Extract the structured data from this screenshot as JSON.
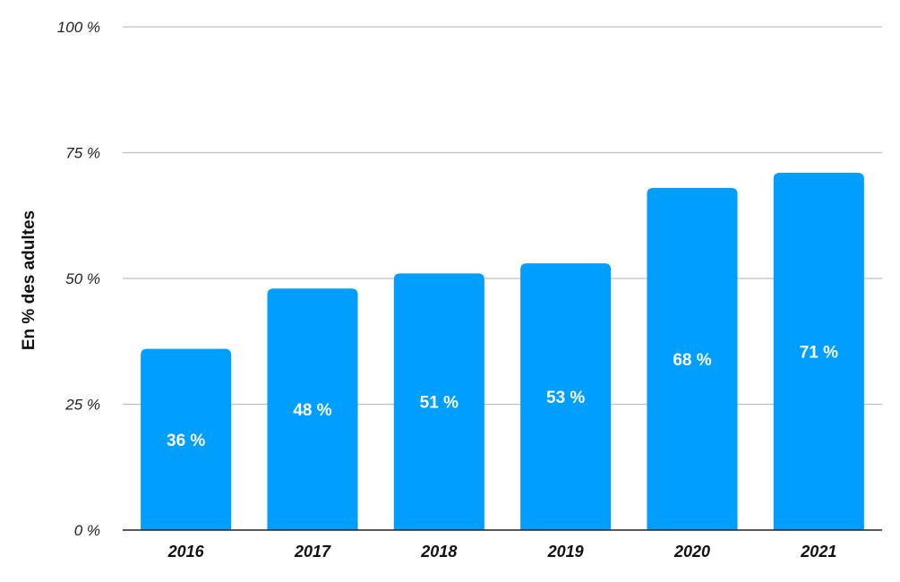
{
  "chart_data": {
    "type": "bar",
    "categories": [
      "2016",
      "2017",
      "2018",
      "2019",
      "2020",
      "2021"
    ],
    "values": [
      36,
      48,
      51,
      53,
      68,
      71
    ],
    "data_labels": [
      "36 %",
      "48 %",
      "51 %",
      "53 %",
      "68 %",
      "71 %"
    ],
    "ylabel": "En % des adultes",
    "xlabel": "",
    "ylim": [
      0,
      100
    ],
    "yticks": [
      0,
      25,
      50,
      75,
      100
    ],
    "ytick_labels": [
      "0 %",
      "25 %",
      "50 %",
      "75 %",
      "100 %"
    ],
    "grid": true,
    "legend": "none",
    "bar_color": "#009fff"
  }
}
